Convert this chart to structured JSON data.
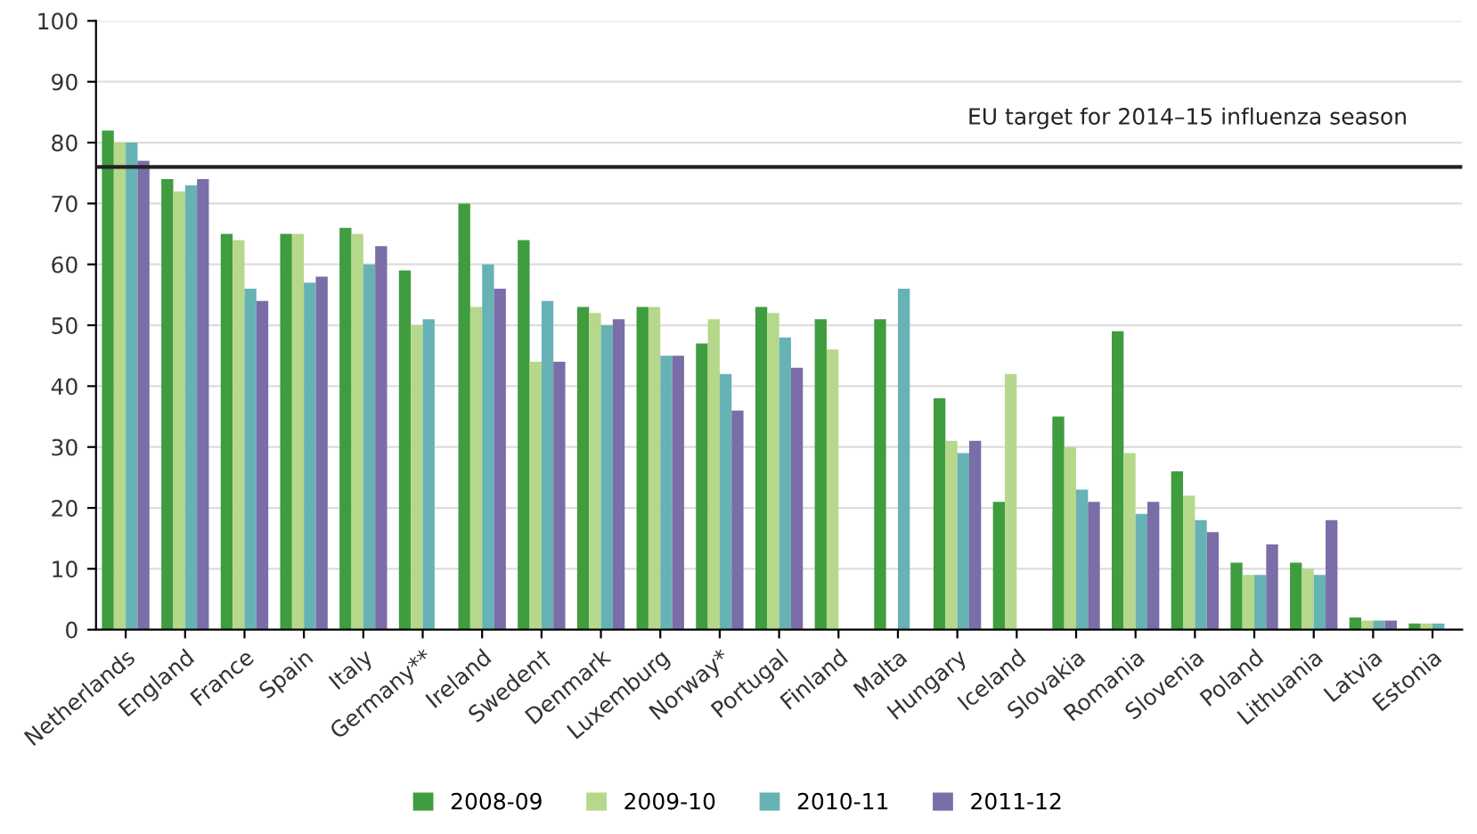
{
  "chart_data": {
    "type": "bar",
    "categories": [
      "Netherlands",
      "England",
      "France",
      "Spain",
      "Italy",
      "Germany**",
      "Ireland",
      "Sweden†",
      "Denmark",
      "Luxemburg",
      "Norway*",
      "Portugal",
      "Finland",
      "Malta",
      "Hungary",
      "Iceland",
      "Slovakia",
      "Romania",
      "Slovenia",
      "Poland",
      "Lithuania",
      "Latvia",
      "Estonia"
    ],
    "series": [
      {
        "name": "2008-09",
        "color": "#3f9c3f",
        "values": [
          82,
          74,
          65,
          65,
          66,
          59,
          70,
          64,
          53,
          53,
          47,
          53,
          51,
          51,
          38,
          21,
          35,
          49,
          26,
          11,
          11,
          2,
          1
        ]
      },
      {
        "name": "2009-10",
        "color": "#b5d88a",
        "values": [
          80,
          72,
          64,
          65,
          65,
          50,
          53,
          44,
          52,
          53,
          51,
          52,
          46,
          null,
          31,
          42,
          30,
          29,
          22,
          9,
          10,
          1.5,
          1
        ]
      },
      {
        "name": "2010-11",
        "color": "#67b2b5",
        "values": [
          80,
          73,
          56,
          57,
          60,
          51,
          60,
          54,
          50,
          45,
          42,
          48,
          null,
          56,
          29,
          null,
          23,
          19,
          18,
          9,
          9,
          1.5,
          1
        ]
      },
      {
        "name": "2011-12",
        "color": "#7a6da8",
        "values": [
          77,
          74,
          54,
          58,
          63,
          null,
          56,
          44,
          51,
          45,
          36,
          43,
          null,
          null,
          31,
          null,
          21,
          21,
          16,
          14,
          18,
          1.5,
          null
        ]
      }
    ],
    "ylim": [
      0,
      100
    ],
    "yticks": [
      0,
      10,
      20,
      30,
      40,
      50,
      60,
      70,
      80,
      90,
      100
    ],
    "grid": "y",
    "legend": "bottom",
    "ref_lines": [
      {
        "axis": "y",
        "value": 76,
        "label": "EU target for 2014–15 influenza season",
        "color": "#222222"
      }
    ]
  }
}
